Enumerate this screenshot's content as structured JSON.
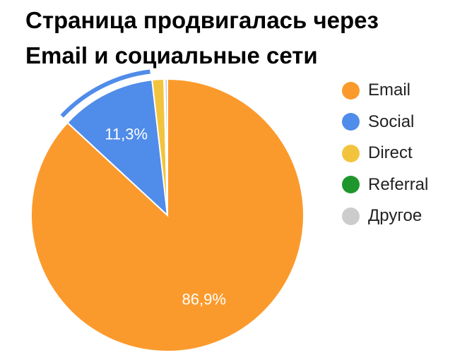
{
  "chart_data": {
    "type": "pie",
    "title_lines": [
      "Страница продвигалась через",
      "Email и социальные сети"
    ],
    "slices": [
      {
        "name": "Email",
        "value": 86.9,
        "label": "86,9%",
        "color": "#FB9A2C"
      },
      {
        "name": "Social",
        "value": 11.3,
        "label": "11,3%",
        "color": "#508CE9",
        "highlighted": true
      },
      {
        "name": "Direct",
        "value": 1.4,
        "label": "",
        "color": "#F2C43E"
      },
      {
        "name": "Referral",
        "value": 0.1,
        "label": "",
        "color": "#1E962B"
      },
      {
        "name": "Другое",
        "value": 0.3,
        "label": "",
        "color": "#CCCCCC"
      }
    ],
    "legend_position": "right"
  }
}
